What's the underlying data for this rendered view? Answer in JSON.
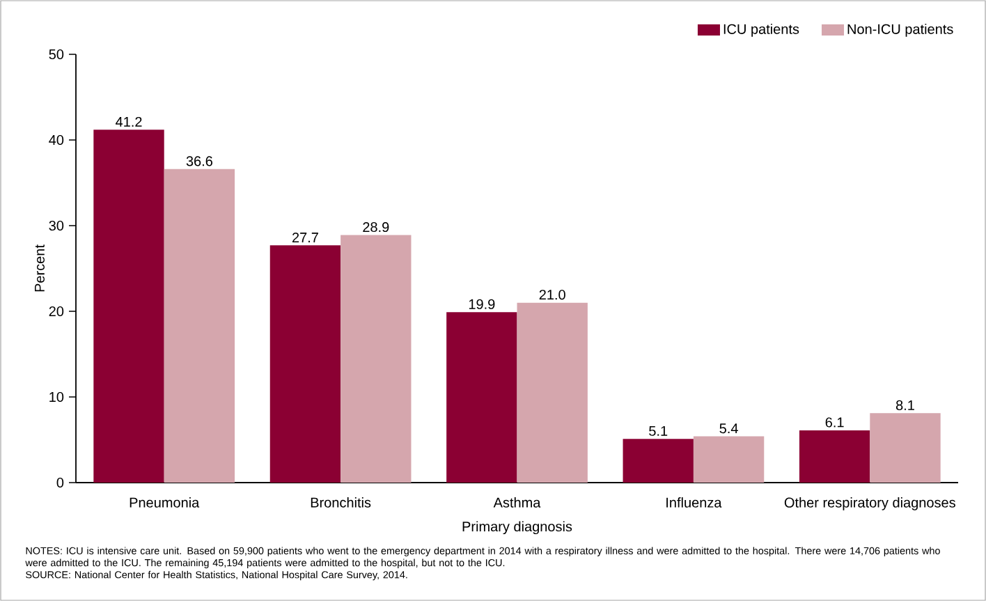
{
  "chart_data": {
    "type": "bar",
    "categories": [
      "Pneumonia",
      "Bronchitis",
      "Asthma",
      "Influenza",
      "Other respiratory diagnoses"
    ],
    "series": [
      {
        "name": "ICU patients",
        "color": "#8b0033",
        "values": [
          41.2,
          27.7,
          19.9,
          5.1,
          6.1
        ],
        "value_labels": [
          "41.2",
          "27.7",
          "19.9",
          "5.1",
          "6.1"
        ]
      },
      {
        "name": "Non-ICU patients",
        "color": "#d5a6ad",
        "values": [
          36.6,
          28.9,
          21.0,
          5.4,
          8.1
        ],
        "value_labels": [
          "36.6",
          "28.9",
          "21.0",
          "5.4",
          "8.1"
        ]
      }
    ],
    "xlabel": "Primary diagnosis",
    "ylabel": "Percent",
    "ylim": [
      0,
      50
    ],
    "yticks": [
      0,
      10,
      20,
      30,
      40,
      50
    ],
    "legend": "top right",
    "annotations": [
      "NOTES: ICU is intensive care unit. Based on 59,900 patients who went to the emergency department in 2014 with a respiratory illness and were admitted to the hospital. There were 14,706 patients who were admitted to the ICU. The remaining 45,194 patients were admitted to the hospital, but not to the ICU.",
      "SOURCE: National Center for Health Statistics, National Hospital Care Survey, 2014."
    ]
  }
}
